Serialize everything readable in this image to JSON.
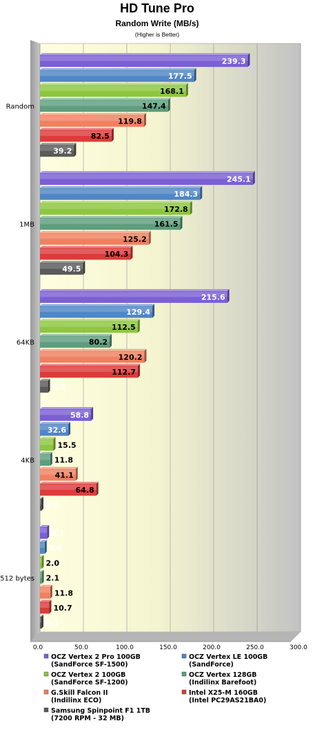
{
  "chart_data": {
    "type": "bar",
    "title": "HD Tune Pro",
    "subtitle": "Random Write (MB/s)",
    "note": "(Higher is Better)",
    "categories": [
      "Random",
      "1MB",
      "64KB",
      "4KB",
      "512 bytes"
    ],
    "xlim": [
      0,
      300
    ],
    "xticks": [
      "0.0",
      "50.0",
      "100.0",
      "150.0",
      "200.0",
      "250.0",
      "300.0"
    ],
    "orientation": "horizontal",
    "grid": true,
    "legend_position": "bottom",
    "series": [
      {
        "name": "OCZ Vertex 2 Pro 100GB (SandForce SF-1500)",
        "legend_lines": [
          "OCZ Vertex 2 Pro 100GB",
          "(SandForce SF-1500)"
        ],
        "color": "#7b5fd6",
        "values": [
          239.3,
          245.1,
          215.6,
          58.8,
          8.1
        ],
        "labels": [
          "239.3",
          "245.1",
          "215.6",
          "58.8",
          "8.1"
        ]
      },
      {
        "name": "OCZ Vertex LE 100GB (SandForce)",
        "legend_lines": [
          "OCZ Vertex LE 100GB",
          "(SandForce)"
        ],
        "color": "#4f86c6",
        "values": [
          177.5,
          184.3,
          129.4,
          32.6,
          5.4
        ],
        "labels": [
          "177.5",
          "184.3",
          "129.4",
          "32.6",
          "5.4"
        ]
      },
      {
        "name": "OCZ Vertex 2 100GB (SandForce SF-1200)",
        "legend_lines": [
          "OCZ Vertex 2 100GB",
          "(SandForce SF-1200)"
        ],
        "color": "#8dc63f",
        "values": [
          168.1,
          172.8,
          112.5,
          15.5,
          2.0
        ],
        "labels": [
          "168.1",
          "172.8",
          "112.5",
          "15.5",
          "2.0"
        ]
      },
      {
        "name": "OCZ Vertex 128GB (Indilinx Barefoot)",
        "legend_lines": [
          "OCZ Vertex 128GB",
          "(Indilinx Barefoot)"
        ],
        "color": "#5e9e7e",
        "values": [
          147.4,
          161.5,
          80.2,
          11.8,
          2.1
        ],
        "labels": [
          "147.4",
          "161.5",
          "80.2",
          "11.8",
          "2.1"
        ]
      },
      {
        "name": "G.Skill Falcon II (Indilinx ECO)",
        "legend_lines": [
          "G.Skill Falcon II",
          "(Indilinx ECO)"
        ],
        "color": "#f08060",
        "values": [
          119.8,
          125.2,
          120.2,
          41.1,
          11.8
        ],
        "labels": [
          "119.8",
          "125.2",
          "120.2",
          "41.1",
          "11.8"
        ]
      },
      {
        "name": "Intel X25-M 160GB (Intel PC29AS21BA0)",
        "legend_lines": [
          "Intel X25-M 160GB",
          "(Intel PC29AS21BA0)"
        ],
        "color": "#dd3b3b",
        "values": [
          82.5,
          104.3,
          112.7,
          64.8,
          10.7
        ],
        "labels": [
          "82.5",
          "104.3",
          "112.7",
          "64.8",
          "10.7"
        ]
      },
      {
        "name": "Samsung Spinpoint F1 1TB (7200 RPM - 32 MB)",
        "legend_lines": [
          "Samsung Spinpoint F1 1TB",
          "(7200 RPM - 32 MB)"
        ],
        "color": "#5a5a5a",
        "values": [
          39.2,
          49.5,
          9.2,
          0.6,
          0.1
        ],
        "labels": [
          "39.2",
          "49.5",
          "9.2",
          "0.6",
          "0.1"
        ]
      }
    ]
  }
}
